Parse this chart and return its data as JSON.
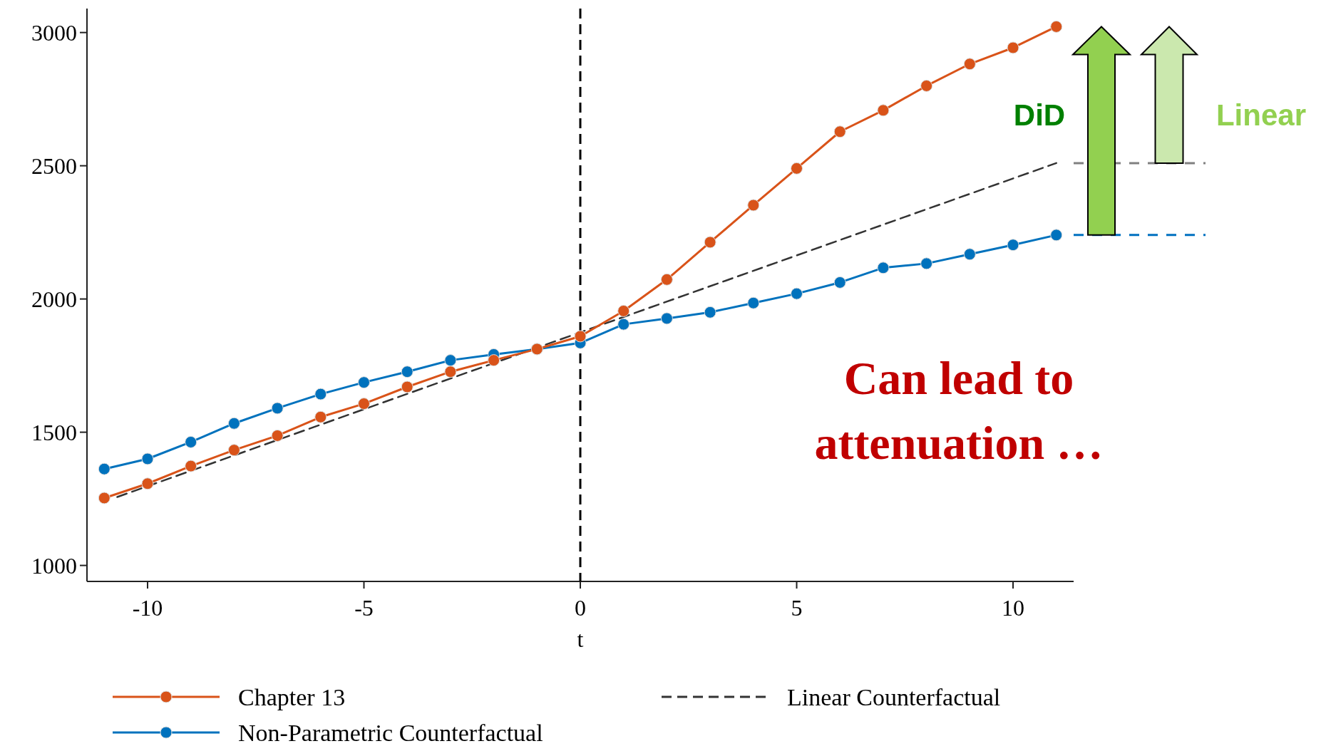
{
  "chart_data": {
    "type": "line",
    "xlabel": "t",
    "xlim": [
      -11.4,
      11.4
    ],
    "xticks": [
      -10,
      -5,
      0,
      5,
      10
    ],
    "ylim": [
      940,
      3090
    ],
    "yticks": [
      1000,
      1500,
      2000,
      2500,
      3000
    ],
    "grid": false,
    "legend": "bottom",
    "marker": "circle",
    "series": [
      {
        "name": "Chapter 13",
        "color": "#d95319",
        "x": [
          -11,
          -10,
          -9,
          -8,
          -7,
          -6,
          -5,
          -4,
          -3,
          -2,
          -1,
          0,
          1,
          2,
          3,
          4,
          5,
          6,
          7,
          8,
          9,
          10,
          11
        ],
        "values": [
          1253,
          1307,
          1373,
          1433,
          1487,
          1557,
          1607,
          1670,
          1727,
          1770,
          1812,
          1860,
          1955,
          2073,
          2213,
          2352,
          2490,
          2628,
          2708,
          2800,
          2882,
          2943,
          3022
        ]
      },
      {
        "name": "Linear Counterfactual",
        "color": "#333333",
        "x": [
          -10.7,
          11
        ],
        "values": [
          1257,
          2510
        ],
        "marker": "none",
        "line_style": "dashed"
      },
      {
        "name": "Non-Parametric  Counterfactual",
        "color": "#0072bd",
        "x": [
          -11,
          -10,
          -9,
          -8,
          -7,
          -6,
          -5,
          -4,
          -3,
          -2,
          -1,
          0,
          1,
          2,
          3,
          4,
          5,
          6,
          7,
          8,
          9,
          10,
          11
        ],
        "values": [
          1362,
          1400,
          1463,
          1533,
          1590,
          1643,
          1687,
          1727,
          1770,
          1792,
          1812,
          1835,
          1905,
          1927,
          1950,
          1985,
          2020,
          2062,
          2117,
          2133,
          2168,
          2203,
          2240
        ]
      }
    ],
    "ref_lines": [
      {
        "axis": "x",
        "value": 0,
        "color": "#000000",
        "line_style": "dashed"
      }
    ],
    "annotations": [
      "DiD",
      "Linear",
      "Can lead to attenuation …"
    ]
  }
}
